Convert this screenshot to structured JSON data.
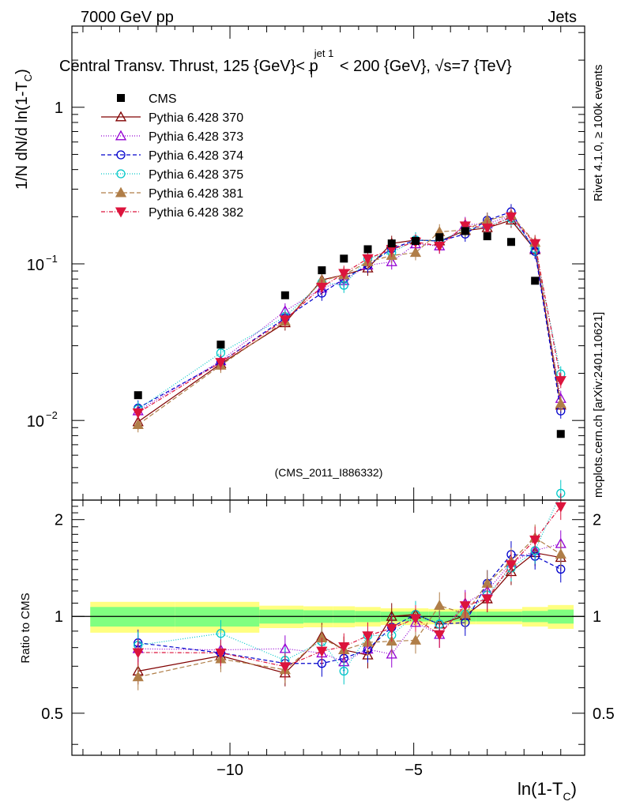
{
  "header": {
    "left": "7000 GeV pp",
    "right": "Jets",
    "title": "Central Transv. Thrust, 125 {GeV}< p",
    "title_sup": "jet 1",
    "title_sub": "T",
    "title_tail": " < 200 {GeV}, √s=7 {TeV}",
    "side_top": "Rivet 4.1.0, ≥ 100k events",
    "side_bottom": "mcplots.cern.ch [arXiv:2401.10621]",
    "analysis": "(CMS_2011_I886332)"
  },
  "axes": {
    "ylabel_main": "1/N   dN/d ln(1-T",
    "ylabel_main_sub": "C",
    "ylabel_main_tail": ")",
    "ylabel_ratio": "Ratio to CMS",
    "xlabel": "ln(1-T",
    "xlabel_sub": "C",
    "xlabel_tail": ")"
  },
  "chart_data": {
    "type": "scatter",
    "x_scale": "linear",
    "xlim": [
      -14.3,
      -0.35
    ],
    "y_scale": "log",
    "ylim": [
      0.0031,
      3.3
    ],
    "ratio_ylim": [
      0.37,
      2.3
    ],
    "x_ticks": [
      {
        "v": -10,
        "label": "−10"
      },
      {
        "v": -5,
        "label": "−5"
      }
    ],
    "y_ticks": [
      {
        "v": 1,
        "label": "1",
        "exp": ""
      },
      {
        "v": 0.1,
        "label": "10",
        "exp": "−1"
      },
      {
        "v": 0.01,
        "label": "10",
        "exp": "−2"
      }
    ],
    "ratio_ticks": [
      {
        "v": 0.5,
        "label": "0.5"
      },
      {
        "v": 1,
        "label": "1"
      },
      {
        "v": 2,
        "label": "2"
      }
    ],
    "x": [
      -12.5,
      -10.25,
      -8.5,
      -7.5,
      -6.9,
      -6.25,
      -5.6,
      -4.95,
      -4.3,
      -3.6,
      -3.0,
      -2.35,
      -1.7,
      -1.0
    ],
    "data": {
      "name": "CMS",
      "values": [
        0.0145,
        0.0305,
        0.063,
        0.091,
        0.108,
        0.124,
        0.135,
        0.14,
        0.148,
        0.162,
        0.15,
        0.138,
        0.078,
        0.0082
      ]
    },
    "bands": {
      "edges": [
        -13.8,
        -11.5,
        -9.2,
        -8.0,
        -7.2,
        -6.6,
        -5.9,
        -5.25,
        -4.6,
        -3.95,
        -3.3,
        -2.65,
        -2.05,
        -1.35,
        -0.65
      ],
      "inner_half": [
        0.07,
        0.07,
        0.05,
        0.045,
        0.045,
        0.04,
        0.035,
        0.035,
        0.035,
        0.035,
        0.035,
        0.035,
        0.04,
        0.05
      ],
      "outer_half": [
        0.11,
        0.11,
        0.08,
        0.075,
        0.075,
        0.07,
        0.06,
        0.06,
        0.055,
        0.055,
        0.055,
        0.055,
        0.07,
        0.085
      ]
    },
    "series": [
      {
        "name": "Pythia 6.428 370",
        "color": "#800000",
        "marker": "triangle-open",
        "dash": "",
        "values": [
          0.0098,
          0.023,
          0.042,
          0.079,
          0.085,
          0.094,
          0.135,
          0.142,
          0.14,
          0.163,
          0.17,
          0.19,
          0.123,
          0.0125
        ]
      },
      {
        "name": "Pythia 6.428 373",
        "color": "#9400d3",
        "marker": "triangle-open",
        "dash": "1,2",
        "values": [
          0.0115,
          0.024,
          0.05,
          0.07,
          0.078,
          0.098,
          0.103,
          0.134,
          0.13,
          0.178,
          0.18,
          0.203,
          0.125,
          0.0138
        ]
      },
      {
        "name": "Pythia 6.428 374",
        "color": "#0000cc",
        "marker": "circle-open",
        "dash": "5,3",
        "values": [
          0.012,
          0.0235,
          0.045,
          0.065,
          0.08,
          0.098,
          0.125,
          0.142,
          0.14,
          0.155,
          0.19,
          0.215,
          0.12,
          0.0115
        ]
      },
      {
        "name": "Pythia 6.428 375",
        "color": "#00c8c8",
        "marker": "circle-open",
        "dash": "1,2",
        "values": [
          0.0118,
          0.027,
          0.046,
          0.076,
          0.073,
          0.108,
          0.118,
          0.142,
          0.14,
          0.165,
          0.175,
          0.195,
          0.125,
          0.0198
        ]
      },
      {
        "name": "Pythia 6.428 381",
        "color": "#b07e48",
        "marker": "triangle-filled",
        "dash": "6,3",
        "values": [
          0.0094,
          0.0225,
          0.043,
          0.078,
          0.085,
          0.103,
          0.113,
          0.118,
          0.16,
          0.165,
          0.19,
          0.205,
          0.137,
          0.0128
        ]
      },
      {
        "name": "Pythia 6.428 382",
        "color": "#dc143c",
        "marker": "triangle-down-filled",
        "dash": "5,2,1,2",
        "values": [
          0.0112,
          0.0235,
          0.044,
          0.071,
          0.087,
          0.108,
          0.124,
          0.138,
          0.13,
          0.175,
          0.17,
          0.2,
          0.135,
          0.018
        ]
      }
    ]
  }
}
